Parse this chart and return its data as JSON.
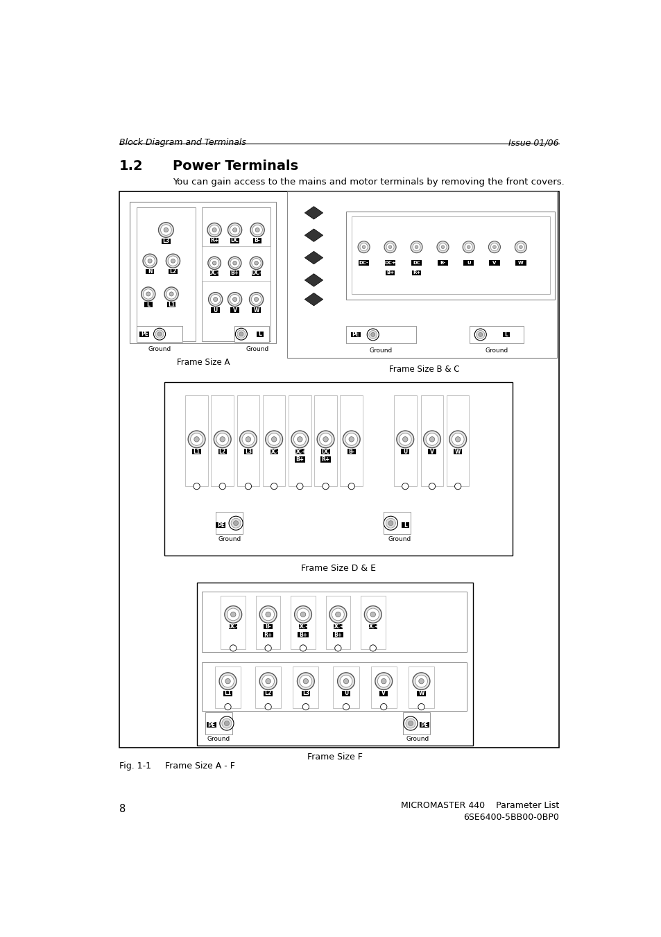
{
  "header_left": "Block Diagram and Terminals",
  "header_right": "Issue 01/06",
  "section_number": "1.2",
  "section_title": "Power Terminals",
  "section_desc": "You can gain access to the mains and motor terminals by removing the front covers.",
  "footer_left_num": "8",
  "footer_right_line1": "MICROMASTER 440    Parameter List",
  "footer_right_line2": "6SE6400-5BB00-0BP0",
  "fig_caption": "Fig. 1-1     Frame Size A - F",
  "frame_size_a_label": "Frame Size A",
  "frame_size_bc_label": "Frame Size B & C",
  "frame_size_de_label": "Frame Size D & E",
  "frame_size_f_label": "Frame Size F",
  "bg_color": "#ffffff"
}
